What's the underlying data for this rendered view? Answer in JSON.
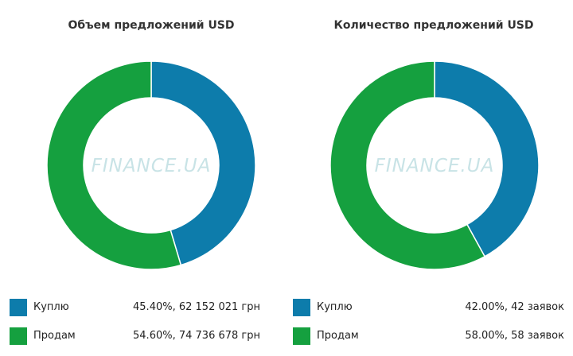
{
  "colors": {
    "buy": "#0d7cab",
    "sell": "#15a03f"
  },
  "watermark": "FINANCE.UA",
  "chart_data": [
    {
      "type": "pie",
      "title": "Объем предложений USD",
      "slices": [
        {
          "name": "Куплю",
          "value": 45.4,
          "label": "45.40%, 62 152 021 грн",
          "color": "#0d7cab"
        },
        {
          "name": "Продам",
          "value": 54.6,
          "label": "54.60%, 74 736 678 грн",
          "color": "#15a03f"
        }
      ]
    },
    {
      "type": "pie",
      "title": "Количество предложений USD",
      "slices": [
        {
          "name": "Куплю",
          "value": 42.0,
          "label": "42.00%, 42 заявок",
          "color": "#0d7cab"
        },
        {
          "name": "Продам",
          "value": 58.0,
          "label": "58.00%, 58 заявок",
          "color": "#15a03f"
        }
      ]
    }
  ]
}
